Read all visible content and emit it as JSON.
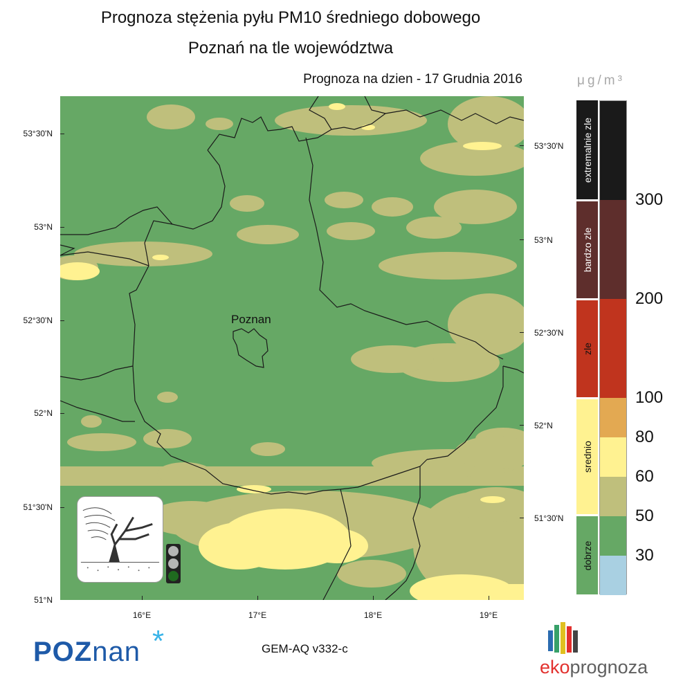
{
  "title_line1": "Prognoza stężenia pyłu PM10 średniego dobowego",
  "title_line2": "Poznań na tle województwa",
  "date_line": "Prognoza na dzien -  17 Grudnia 2016",
  "unit": "μg/m³",
  "map": {
    "city_label": "Poznan",
    "lat_labels": [
      "53°30'N",
      "53°N",
      "52°30'N",
      "52°N",
      "51°30'N",
      "51°N"
    ],
    "lon_labels": [
      "16°E",
      "17°E",
      "18°E",
      "19°E"
    ]
  },
  "legend": {
    "categories": [
      {
        "label": "extremalnie zle",
        "color": "#1a1a1a"
      },
      {
        "label": "bardzo zle",
        "color": "#5e2e2c"
      },
      {
        "label": "zle",
        "color": "#c0341e"
      },
      {
        "label": "srednio",
        "color": "#fff291"
      },
      {
        "label": "dobrze",
        "color": "#66a865"
      }
    ],
    "bands": [
      {
        "from": 300,
        "color": "#1a1a1a"
      },
      {
        "from": 200,
        "to": 300,
        "color": "#5e2e2c"
      },
      {
        "from": 100,
        "to": 200,
        "color": "#c0341e"
      },
      {
        "from": 80,
        "to": 100,
        "color": "#e3a952"
      },
      {
        "from": 60,
        "to": 80,
        "color": "#fff291"
      },
      {
        "from": 50,
        "to": 60,
        "color": "#bfbf7c"
      },
      {
        "from": 30,
        "to": 50,
        "color": "#66a865"
      },
      {
        "to": 30,
        "color": "#a9d0e2"
      }
    ],
    "thresholds": [
      "300",
      "200",
      "100",
      "80",
      "60",
      "50",
      "30"
    ]
  },
  "model_label": "GEM-AQ v332-c",
  "logos": {
    "left": {
      "main": "POZ",
      "tail": "nan",
      "mark": "*"
    },
    "right": {
      "part1": "eko",
      "part2": "prognoza"
    }
  },
  "traffic_light": {
    "active": "green",
    "colors": {
      "off": "#b5b5b5",
      "green": "#1f6b1f"
    }
  },
  "icons": [
    "windy-tree-icon",
    "traffic-light-icon",
    "asterisk-logo-icon",
    "color-bars-logo-icon"
  ]
}
